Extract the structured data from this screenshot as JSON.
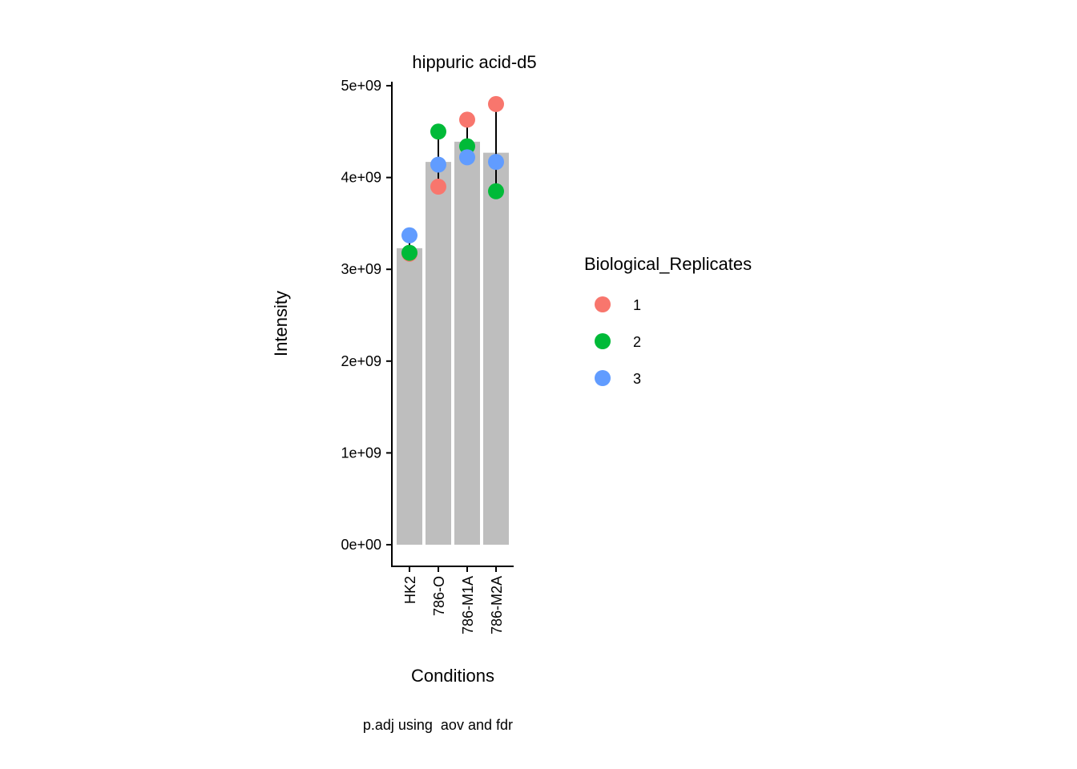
{
  "chart_data": {
    "type": "bar",
    "title": "hippuric acid-d5",
    "xlabel": "Conditions",
    "ylabel": "Intensity",
    "caption": "p.adj using  aov and fdr",
    "categories": [
      "HK2",
      "786-O",
      "786-M1A",
      "786-M2A"
    ],
    "bar_values": [
      3230000000.0,
      4170000000.0,
      4390000000.0,
      4270000000.0
    ],
    "bar_color": "#BEBEBE",
    "error_bars": [
      {
        "low": 3170000000.0,
        "high": 3370000000.0
      },
      {
        "low": 3900000000.0,
        "high": 4500000000.0
      },
      {
        "low": 4210000000.0,
        "high": 4630000000.0
      },
      {
        "low": 3850000000.0,
        "high": 4800000000.0
      }
    ],
    "ylim": [
      0,
      5000000000
    ],
    "y_ticks": [
      {
        "value": 0,
        "label": "0e+00"
      },
      {
        "value": 1000000000,
        "label": "1e+09"
      },
      {
        "value": 2000000000,
        "label": "2e+09"
      },
      {
        "value": 3000000000,
        "label": "3e+09"
      },
      {
        "value": 4000000000,
        "label": "4e+09"
      },
      {
        "value": 5000000000,
        "label": "5e+09"
      }
    ],
    "series": [
      {
        "name": "1",
        "color": "#F8766D",
        "values": [
          3170000000.0,
          3900000000.0,
          4630000000.0,
          4800000000.0
        ]
      },
      {
        "name": "2",
        "color": "#00BA38",
        "values": [
          3180000000.0,
          4500000000.0,
          4340000000.0,
          3850000000.0
        ]
      },
      {
        "name": "3",
        "color": "#619CFF",
        "values": [
          3370000000.0,
          4140000000.0,
          4220000000.0,
          4170000000.0
        ]
      }
    ],
    "legend": {
      "title": "Biological_Replicates",
      "position": "right"
    },
    "grid": false
  }
}
